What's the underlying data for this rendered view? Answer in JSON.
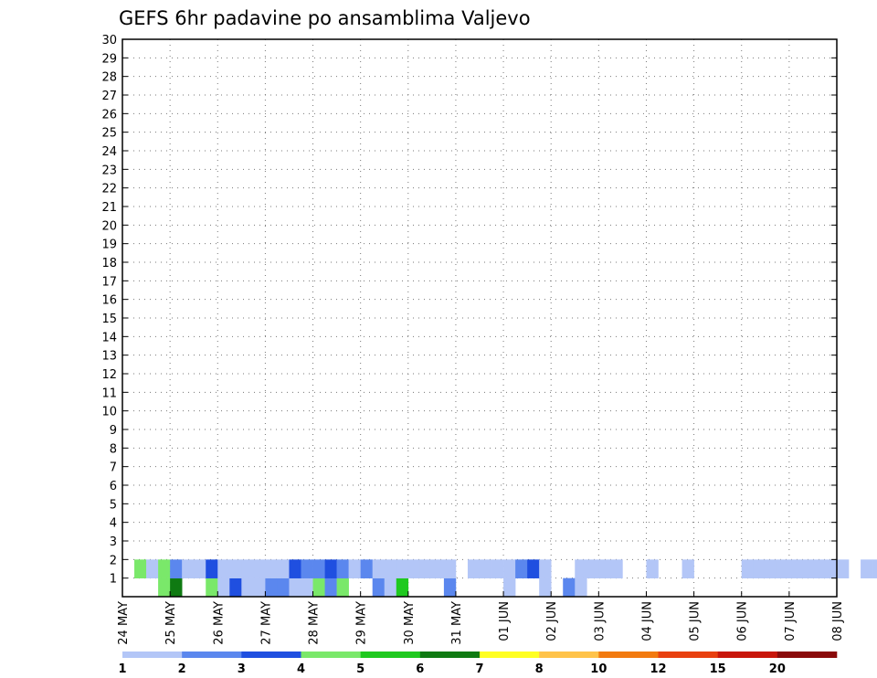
{
  "chart_data": {
    "type": "heatmap",
    "title": "GEFS 6hr padavine po ansamblima Valjevo",
    "y_ticks": [
      "1",
      "2",
      "3",
      "4",
      "5",
      "6",
      "7",
      "8",
      "9",
      "10",
      "11",
      "12",
      "13",
      "14",
      "15",
      "16",
      "17",
      "18",
      "19",
      "20",
      "21",
      "22",
      "23",
      "24",
      "25",
      "26",
      "27",
      "28",
      "29",
      "30"
    ],
    "ylim": [
      0,
      30
    ],
    "x_ticks": [
      "24 MAY",
      "25 MAY",
      "26 MAY",
      "27 MAY",
      "28 MAY",
      "29 MAY",
      "30 MAY",
      "31 MAY",
      "01 JUN",
      "02 JUN",
      "03 JUN",
      "04 JUN",
      "05 JUN",
      "06 JUN",
      "07 JUN",
      "08 JUN"
    ],
    "steps_per_day": 4,
    "grid": "dotted",
    "color_bins": [
      {
        "value": 1,
        "color": "#b3c6f7"
      },
      {
        "value": 2,
        "color": "#5b87ee"
      },
      {
        "value": 3,
        "color": "#1f4fe0"
      },
      {
        "value": 4,
        "color": "#7ae86a"
      },
      {
        "value": 5,
        "color": "#1fc91f"
      },
      {
        "value": 6,
        "color": "#0f7a12"
      },
      {
        "value": 7,
        "color": "#ffff22"
      },
      {
        "value": 8,
        "color": "#ffc34a"
      },
      {
        "value": 10,
        "color": "#f27a0f"
      },
      {
        "value": 12,
        "color": "#e8400f"
      },
      {
        "value": 15,
        "color": "#c8160a"
      },
      {
        "value": 20,
        "color": "#8a0a0a"
      }
    ],
    "legend_labels": [
      "1",
      "2",
      "3",
      "4",
      "5",
      "6",
      "7",
      "8",
      "10",
      "12",
      "15",
      "20"
    ],
    "legend_placement": "bottom",
    "cells": [
      [
        3,
        0,
        3
      ],
      [
        4,
        0,
        5
      ],
      [
        7,
        0,
        3
      ],
      [
        8,
        0,
        0
      ],
      [
        9,
        0,
        2
      ],
      [
        10,
        0,
        0
      ],
      [
        11,
        0,
        0
      ],
      [
        12,
        0,
        1
      ],
      [
        13,
        0,
        1
      ],
      [
        14,
        0,
        0
      ],
      [
        15,
        0,
        0
      ],
      [
        16,
        0,
        3
      ],
      [
        17,
        0,
        1
      ],
      [
        18,
        0,
        3
      ],
      [
        21,
        0,
        1
      ],
      [
        22,
        0,
        0
      ],
      [
        23,
        0,
        4
      ],
      [
        27,
        0,
        1
      ],
      [
        32,
        0,
        0
      ],
      [
        35,
        0,
        0
      ],
      [
        37,
        0,
        1
      ],
      [
        38,
        0,
        0
      ],
      [
        1,
        1,
        3
      ],
      [
        2,
        1,
        0
      ],
      [
        3,
        1,
        3
      ],
      [
        4,
        1,
        1
      ],
      [
        5,
        1,
        0
      ],
      [
        6,
        1,
        0
      ],
      [
        7,
        1,
        2
      ],
      [
        8,
        1,
        0
      ],
      [
        9,
        1,
        0
      ],
      [
        10,
        1,
        0
      ],
      [
        11,
        1,
        0
      ],
      [
        12,
        1,
        0
      ],
      [
        13,
        1,
        0
      ],
      [
        14,
        1,
        2
      ],
      [
        15,
        1,
        1
      ],
      [
        16,
        1,
        1
      ],
      [
        17,
        1,
        2
      ],
      [
        18,
        1,
        1
      ],
      [
        19,
        1,
        0
      ],
      [
        20,
        1,
        1
      ],
      [
        21,
        1,
        0
      ],
      [
        22,
        1,
        0
      ],
      [
        23,
        1,
        0
      ],
      [
        24,
        1,
        0
      ],
      [
        25,
        1,
        0
      ],
      [
        26,
        1,
        0
      ],
      [
        27,
        1,
        0
      ],
      [
        29,
        1,
        0
      ],
      [
        30,
        1,
        0
      ],
      [
        31,
        1,
        0
      ],
      [
        32,
        1,
        0
      ],
      [
        33,
        1,
        1
      ],
      [
        34,
        1,
        2
      ],
      [
        35,
        1,
        0
      ],
      [
        38,
        1,
        0
      ],
      [
        39,
        1,
        0
      ],
      [
        40,
        1,
        0
      ],
      [
        41,
        1,
        0
      ],
      [
        44,
        1,
        0
      ],
      [
        47,
        1,
        0
      ],
      [
        52,
        1,
        0
      ],
      [
        53,
        1,
        0
      ],
      [
        54,
        1,
        0
      ],
      [
        55,
        1,
        0
      ],
      [
        56,
        1,
        0
      ],
      [
        57,
        1,
        0
      ],
      [
        58,
        1,
        0
      ],
      [
        59,
        1,
        0
      ],
      [
        60,
        1,
        0
      ],
      [
        62,
        1,
        0
      ],
      [
        63,
        1,
        0
      ],
      [
        64,
        1,
        0
      ]
    ]
  }
}
